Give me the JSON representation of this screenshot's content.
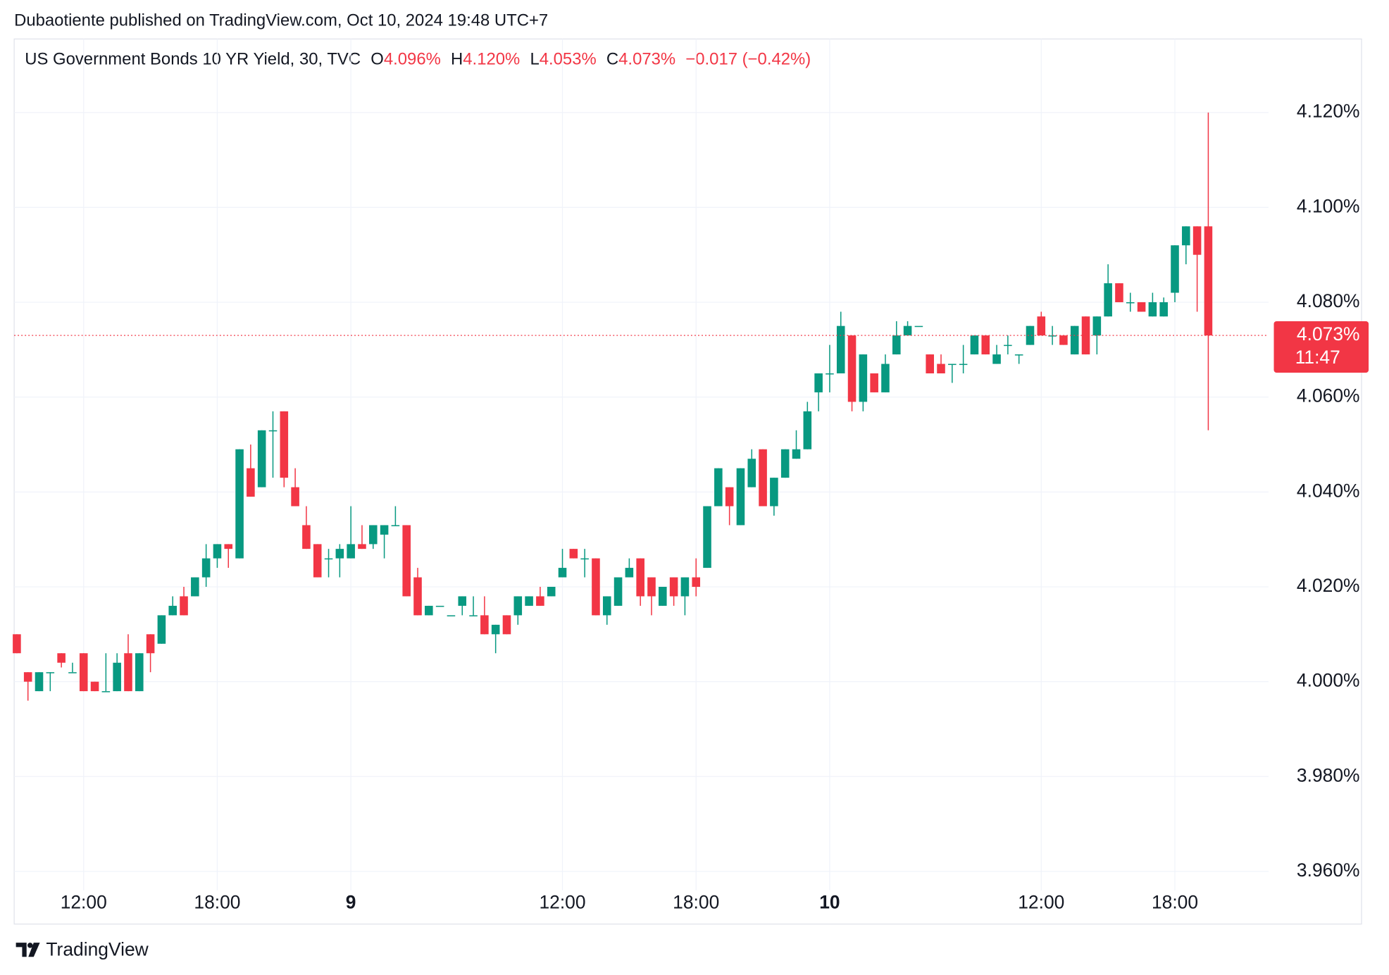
{
  "header": {
    "published": "Dubaotiente published on TradingView.com, Oct 10, 2024 19:48 UTC+7",
    "symbol": "US Government Bonds 10 YR Yield, 30, TVC",
    "open_key": "O",
    "open": "4.096%",
    "high_key": "H",
    "high": "4.120%",
    "low_key": "L",
    "low": "4.053%",
    "close_key": "C",
    "close": "4.073%",
    "change": "−0.017 (−0.42%)"
  },
  "footer": {
    "brand": "TradingView"
  },
  "chart_data": {
    "type": "candlestick",
    "up_color": "#089981",
    "down_color": "#f23645",
    "grid": true,
    "categories": [
      null,
      null,
      null,
      null,
      null,
      null,
      "12:00",
      null,
      null,
      null,
      null,
      null,
      null,
      null,
      null,
      null,
      null,
      null,
      "18:00",
      null,
      null,
      null,
      null,
      null,
      null,
      null,
      null,
      null,
      null,
      null,
      "9",
      null,
      null,
      null,
      null,
      null,
      null,
      null,
      null,
      null,
      null,
      null,
      null,
      null,
      null,
      null,
      null,
      null,
      null,
      "12:00",
      null,
      null,
      null,
      null,
      null,
      null,
      null,
      null,
      null,
      null,
      null,
      "18:00",
      null,
      null,
      null,
      null,
      null,
      null,
      null,
      null,
      null,
      null,
      null,
      "10",
      null,
      null,
      null,
      null,
      null,
      null,
      null,
      null,
      null,
      null,
      null,
      null,
      null,
      null,
      null,
      null,
      null,
      null,
      "12:00",
      null,
      null,
      null,
      null,
      null,
      null,
      null,
      null,
      null,
      null,
      null,
      "18:00",
      null,
      null,
      null
    ],
    "open": [
      4.01,
      4.002,
      3.998,
      4.002,
      4.006,
      4.002,
      4.006,
      4.0,
      3.998,
      3.998,
      4.006,
      3.998,
      4.01,
      4.008,
      4.014,
      4.018,
      4.018,
      4.022,
      4.026,
      4.029,
      4.026,
      4.045,
      4.041,
      4.053,
      4.057,
      4.041,
      4.033,
      4.029,
      4.026,
      4.026,
      4.026,
      4.029,
      4.029,
      4.031,
      4.033,
      4.033,
      4.022,
      4.014,
      4.016,
      4.014,
      4.016,
      4.014,
      4.014,
      4.01,
      4.014,
      4.014,
      4.016,
      4.018,
      4.018,
      4.022,
      4.028,
      4.026,
      4.026,
      4.014,
      4.016,
      4.022,
      4.026,
      4.022,
      4.016,
      4.022,
      4.018,
      4.022,
      4.024,
      4.037,
      4.041,
      4.033,
      4.041,
      4.049,
      4.037,
      4.043,
      4.047,
      4.049,
      4.061,
      4.065,
      4.065,
      4.073,
      4.059,
      4.065,
      4.061,
      4.069,
      4.073,
      4.075,
      4.069,
      4.067,
      4.067,
      4.067,
      4.069,
      4.073,
      4.067,
      4.071,
      4.069,
      4.071,
      4.077,
      4.073,
      4.073,
      4.069,
      4.077,
      4.073,
      4.077,
      4.084,
      4.08,
      4.08,
      4.077,
      4.077,
      4.082,
      4.092,
      4.096,
      4.096
    ],
    "high": [
      4.01,
      4.002,
      4.002,
      4.002,
      4.006,
      4.004,
      4.006,
      4.0,
      4.006,
      4.006,
      4.01,
      4.006,
      4.01,
      4.014,
      4.018,
      4.02,
      4.022,
      4.029,
      4.029,
      4.029,
      4.049,
      4.05,
      4.053,
      4.057,
      4.057,
      4.045,
      4.037,
      4.029,
      4.028,
      4.029,
      4.037,
      4.033,
      4.033,
      4.033,
      4.037,
      4.033,
      4.024,
      4.016,
      4.016,
      4.014,
      4.018,
      4.018,
      4.018,
      4.012,
      4.014,
      4.018,
      4.018,
      4.02,
      4.02,
      4.028,
      4.028,
      4.028,
      4.026,
      4.018,
      4.022,
      4.026,
      4.026,
      4.022,
      4.02,
      4.022,
      4.022,
      4.026,
      4.037,
      4.045,
      4.041,
      4.045,
      4.049,
      4.049,
      4.043,
      4.049,
      4.053,
      4.059,
      4.065,
      4.071,
      4.078,
      4.073,
      4.069,
      4.065,
      4.069,
      4.076,
      4.076,
      4.075,
      4.069,
      4.069,
      4.067,
      4.071,
      4.073,
      4.073,
      4.071,
      4.073,
      4.069,
      4.075,
      4.078,
      4.075,
      4.073,
      4.075,
      4.077,
      4.077,
      4.088,
      4.084,
      4.082,
      4.08,
      4.082,
      4.081,
      4.092,
      4.096,
      4.096,
      4.12
    ],
    "low": [
      4.006,
      3.996,
      3.998,
      3.998,
      4.003,
      4.002,
      3.998,
      3.998,
      3.998,
      3.998,
      3.998,
      3.998,
      4.002,
      4.008,
      4.014,
      4.014,
      4.018,
      4.02,
      4.024,
      4.024,
      4.026,
      4.039,
      4.041,
      4.043,
      4.041,
      4.037,
      4.028,
      4.022,
      4.022,
      4.022,
      4.026,
      4.028,
      4.028,
      4.026,
      4.033,
      4.018,
      4.014,
      4.014,
      4.016,
      4.014,
      4.014,
      4.014,
      4.01,
      4.006,
      4.01,
      4.012,
      4.016,
      4.016,
      4.018,
      4.022,
      4.026,
      4.022,
      4.014,
      4.012,
      4.016,
      4.022,
      4.016,
      4.014,
      4.016,
      4.016,
      4.014,
      4.018,
      4.024,
      4.037,
      4.033,
      4.033,
      4.041,
      4.037,
      4.035,
      4.043,
      4.047,
      4.049,
      4.057,
      4.061,
      4.065,
      4.057,
      4.057,
      4.061,
      4.061,
      4.069,
      4.073,
      4.075,
      4.065,
      4.065,
      4.063,
      4.065,
      4.069,
      4.069,
      4.067,
      4.069,
      4.067,
      4.071,
      4.073,
      4.071,
      4.071,
      4.069,
      4.069,
      4.069,
      4.077,
      4.08,
      4.078,
      4.078,
      4.077,
      4.077,
      4.08,
      4.088,
      4.078,
      4.053
    ],
    "close": [
      4.006,
      4.0,
      4.002,
      4.002,
      4.004,
      4.002,
      3.998,
      3.998,
      3.998,
      4.004,
      3.998,
      4.006,
      4.006,
      4.014,
      4.016,
      4.014,
      4.022,
      4.026,
      4.029,
      4.028,
      4.049,
      4.039,
      4.053,
      4.053,
      4.043,
      4.037,
      4.028,
      4.022,
      4.026,
      4.028,
      4.029,
      4.028,
      4.033,
      4.033,
      4.033,
      4.018,
      4.014,
      4.016,
      4.016,
      4.014,
      4.018,
      4.014,
      4.01,
      4.012,
      4.01,
      4.018,
      4.018,
      4.016,
      4.02,
      4.024,
      4.026,
      4.026,
      4.014,
      4.018,
      4.022,
      4.024,
      4.018,
      4.018,
      4.02,
      4.018,
      4.022,
      4.02,
      4.037,
      4.045,
      4.037,
      4.045,
      4.047,
      4.037,
      4.043,
      4.049,
      4.049,
      4.057,
      4.065,
      4.065,
      4.075,
      4.059,
      4.069,
      4.061,
      4.067,
      4.073,
      4.075,
      4.075,
      4.065,
      4.065,
      4.067,
      4.067,
      4.073,
      4.069,
      4.069,
      4.071,
      4.069,
      4.075,
      4.073,
      4.073,
      4.071,
      4.075,
      4.069,
      4.077,
      4.084,
      4.08,
      4.08,
      4.078,
      4.08,
      4.08,
      4.092,
      4.096,
      4.09,
      4.073
    ],
    "ylim": [
      3.956,
      4.1355
    ],
    "yticks": [
      {
        "value": 4.12,
        "label": "4.120%"
      },
      {
        "value": 4.1,
        "label": "4.100%"
      },
      {
        "value": 4.08,
        "label": "4.080%"
      },
      {
        "value": 4.06,
        "label": "4.060%"
      },
      {
        "value": 4.04,
        "label": "4.040%"
      },
      {
        "value": 4.02,
        "label": "4.020%"
      },
      {
        "value": 4.0,
        "label": "4.000%"
      },
      {
        "value": 3.98,
        "label": "3.980%"
      },
      {
        "value": 3.96,
        "label": "3.960%"
      }
    ],
    "last_price": {
      "value": 4.073,
      "label": "4.073%"
    },
    "countdown": "11:47"
  }
}
